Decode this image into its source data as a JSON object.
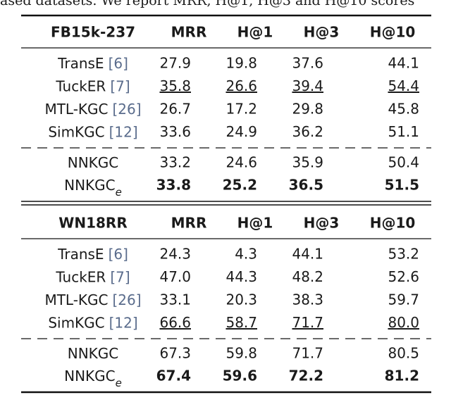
{
  "caption": "ased datasets. We report MRR, H@1, H@3 and H@10 scores",
  "sections": [
    {
      "header": [
        "FB15k-237",
        "MRR",
        "H@1",
        "H@3",
        "H@10"
      ],
      "baselines": [
        {
          "model": "TransE",
          "ref": "[6]",
          "values": [
            "27.9",
            "19.8",
            "37.6",
            "44.1"
          ]
        },
        {
          "model": "TuckER",
          "ref": "[7]",
          "values": [
            "35.8",
            "26.6",
            "39.4",
            "54.4"
          ],
          "underline": true
        },
        {
          "model": "MTL-KGC",
          "ref": "[26]",
          "values": [
            "26.7",
            "17.2",
            "29.8",
            "45.8"
          ]
        },
        {
          "model": "SimKGC",
          "ref": "[12]",
          "values": [
            "33.6",
            "24.9",
            "36.2",
            "51.1"
          ]
        }
      ],
      "proposed": [
        {
          "model": "NNKGC",
          "values": [
            "33.2",
            "24.6",
            "35.9",
            "50.4"
          ]
        },
        {
          "model": "NNKGC",
          "subscript": "e",
          "values": [
            "33.8",
            "25.2",
            "36.5",
            "51.5"
          ],
          "bold": true
        }
      ]
    },
    {
      "header": [
        "WN18RR",
        "MRR",
        "H@1",
        "H@3",
        "H@10"
      ],
      "baselines": [
        {
          "model": "TransE",
          "ref": "[6]",
          "values": [
            "24.3",
            "4.3",
            "44.1",
            "53.2"
          ]
        },
        {
          "model": "TuckER",
          "ref": "[7]",
          "values": [
            "47.0",
            "44.3",
            "48.2",
            "52.6"
          ]
        },
        {
          "model": "MTL-KGC",
          "ref": "[26]",
          "values": [
            "33.1",
            "20.3",
            "38.3",
            "59.7"
          ]
        },
        {
          "model": "SimKGC",
          "ref": "[12]",
          "values": [
            "66.6",
            "58.7",
            "71.7",
            "80.0"
          ],
          "underline": true
        }
      ],
      "proposed": [
        {
          "model": "NNKGC",
          "values": [
            "67.3",
            "59.8",
            "71.7",
            "80.5"
          ]
        },
        {
          "model": "NNKGC",
          "subscript": "e",
          "values": [
            "67.4",
            "59.6",
            "72.2",
            "81.2"
          ],
          "bold": true
        }
      ]
    }
  ]
}
